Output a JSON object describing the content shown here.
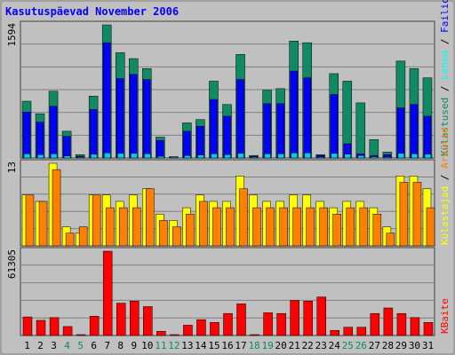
{
  "chart_data": {
    "type": "bar",
    "title": "Kasutuspäevad November 2006",
    "categories": [
      "1",
      "2",
      "3",
      "4",
      "5",
      "6",
      "7",
      "8",
      "9",
      "10",
      "11",
      "12",
      "13",
      "14",
      "15",
      "16",
      "17",
      "18",
      "19",
      "20",
      "21",
      "22",
      "23",
      "24",
      "25",
      "26",
      "27",
      "28",
      "29",
      "30",
      "31"
    ],
    "weekend_days": [
      "4",
      "5",
      "11",
      "12",
      "18",
      "19",
      "25",
      "26"
    ],
    "panels": [
      {
        "id": "pages",
        "ylabel": "1594",
        "max": 1594,
        "series": [
          {
            "name": "Külastused",
            "color": "#0f8a64",
            "values": [
              680,
              530,
              800,
              320,
              40,
              740,
              1594,
              1260,
              1190,
              1070,
              250,
              15,
              420,
              460,
              920,
              640,
              1240,
              30,
              810,
              830,
              1400,
              1380,
              40,
              1010,
              920,
              660,
              220,
              70,
              1160,
              1070,
              960
            ]
          },
          {
            "name": "Lehed",
            "color": "#0000ff",
            "values": [
              550,
              430,
              620,
              260,
              20,
              580,
              1380,
              950,
              1000,
              940,
              210,
              10,
              320,
              380,
              700,
              500,
              940,
              20,
              650,
              650,
              1040,
              960,
              30,
              760,
              170,
              50,
              30,
              40,
              600,
              640,
              500
            ]
          },
          {
            "name": "Failid",
            "color": "#00ccff",
            "values": [
              50,
              40,
              50,
              25,
              5,
              45,
              60,
              55,
              55,
              50,
              20,
              5,
              30,
              35,
              50,
              40,
              55,
              5,
              50,
              50,
              60,
              60,
              5,
              55,
              45,
              30,
              15,
              10,
              55,
              50,
              45
            ]
          }
        ]
      },
      {
        "id": "visits",
        "ylabel": "13",
        "max": 13,
        "series": [
          {
            "name": "Külastajad",
            "color": "#ffff00",
            "values": [
              8,
              7,
              13,
              3,
              2,
              8,
              8,
              7,
              8,
              9,
              5,
              4,
              6,
              8,
              7,
              7,
              11,
              8,
              7,
              7,
              8,
              8,
              7,
              6,
              7,
              7,
              6,
              3,
              11,
              11,
              9
            ]
          },
          {
            "name": "Arvutid",
            "color": "#ff8000",
            "values": [
              8,
              7,
              12,
              2,
              3,
              8,
              6,
              6,
              6,
              9,
              4,
              3,
              5,
              7,
              6,
              6,
              9,
              6,
              6,
              6,
              6,
              6,
              6,
              5,
              6,
              6,
              5,
              2,
              10,
              10,
              6
            ]
          }
        ]
      },
      {
        "id": "kbytes",
        "ylabel": "61305",
        "max": 61305,
        "series": [
          {
            "name": "KBaite",
            "color": "#ff0000",
            "values": [
              13500,
              11000,
              13000,
              6500,
              500,
              14000,
              61305,
              23500,
              25000,
              21000,
              3000,
              500,
              7500,
              11500,
              9500,
              16000,
              23000,
              500,
              16500,
              16000,
              25500,
              25000,
              28000,
              3700,
              6000,
              6000,
              16000,
              20000,
              16000,
              13000,
              9500
            ]
          }
        ]
      }
    ],
    "right_legend": {
      "top": [
        {
          "text": "Külastused",
          "color": "#0f8a64"
        },
        {
          "text": "Lehed",
          "color": "#00ffff"
        },
        {
          "text": "Failid",
          "color": "#0000ff"
        },
        {
          "text": "Pöördumisi",
          "color": "#0f8a64"
        }
      ],
      "middle": [
        {
          "text": "Külastajad",
          "color": "#ffff00"
        },
        {
          "text": "Arvutid",
          "color": "#ff8000"
        }
      ],
      "bottom": [
        {
          "text": "KBaite",
          "color": "#ff0000"
        }
      ]
    },
    "colors": {
      "background": "#c0c0c0",
      "panel_bg": "#c0c0c0",
      "grid": "#808080",
      "title": "#0000ff",
      "weekday_label": "#000000",
      "weekend_label": "#0f8a64"
    }
  }
}
